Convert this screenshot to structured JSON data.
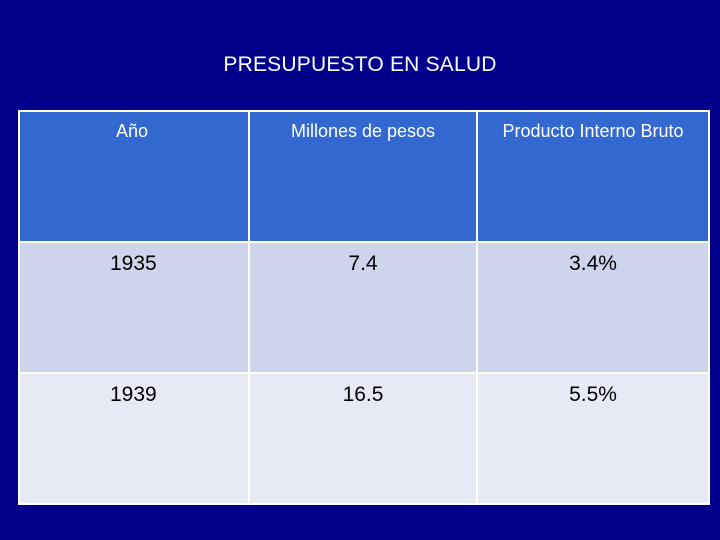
{
  "slide": {
    "title": "PRESUPUESTO EN SALUD"
  },
  "table": {
    "headers": [
      "Año",
      "Millones de pesos",
      "Producto Interno Bruto"
    ],
    "rows": [
      [
        "1935",
        "7.4",
        "3.4%"
      ],
      [
        "1939",
        "16.5",
        "5.5%"
      ]
    ]
  },
  "colors": {
    "background": "#00008b",
    "header": "#3268cf",
    "row_odd": "#cdd4ec",
    "row_even": "#e7eaf5"
  }
}
